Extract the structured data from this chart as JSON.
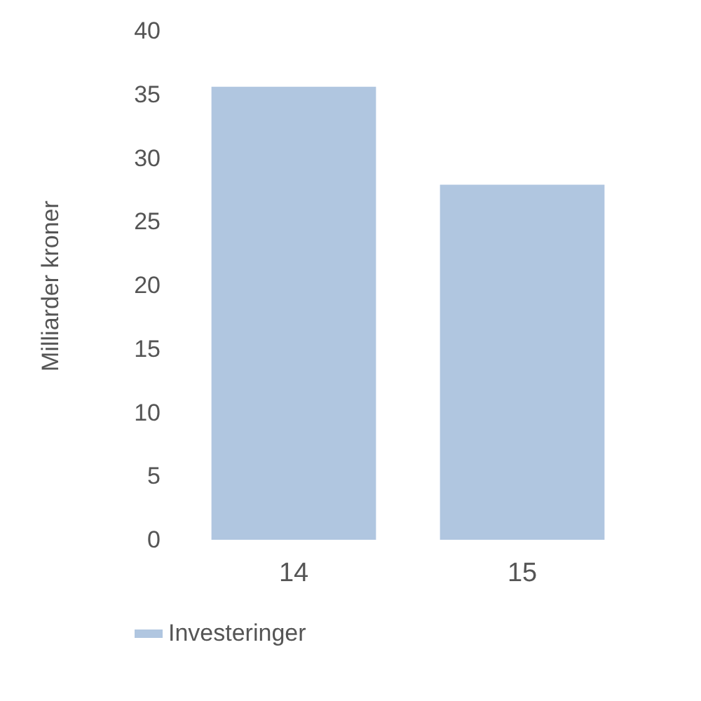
{
  "chart_data": {
    "type": "bar",
    "ylabel": "Milliarder kroner",
    "categories": [
      "14",
      "15"
    ],
    "series": [
      {
        "name": "Investeringer",
        "color": "#b0c6e0",
        "values": [
          35.6,
          27.9
        ]
      }
    ],
    "ylim": [
      0,
      40
    ],
    "yticks": [
      0,
      5,
      10,
      15,
      20,
      25,
      30,
      35,
      40
    ],
    "grid": false,
    "legend": "bottom left"
  }
}
